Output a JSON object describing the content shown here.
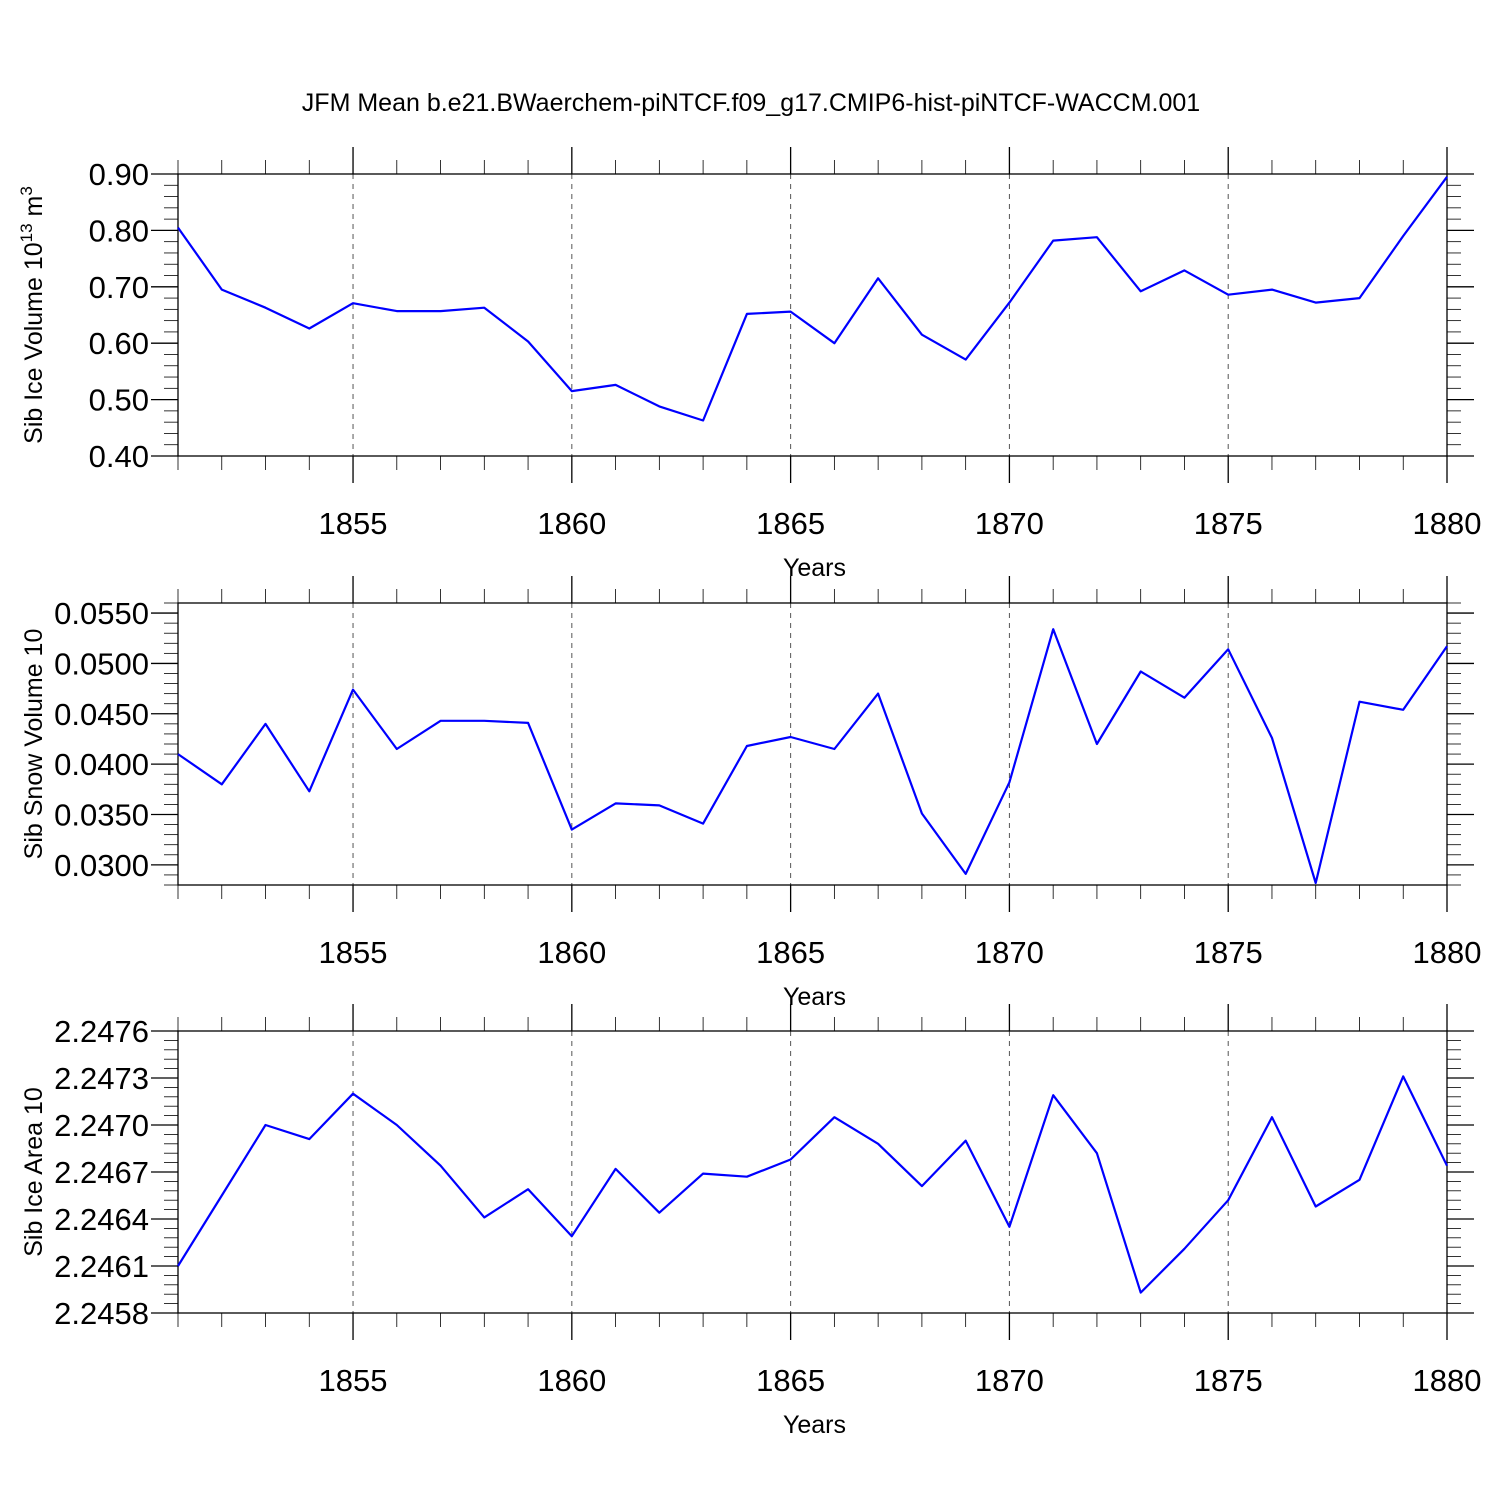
{
  "title": "JFM Mean b.e21.BWaerchem-piNTCF.f09_g17.CMIP6-hist-piNTCF-WACCM.001",
  "colors": {
    "series": "#0000ff",
    "frame": "#000000",
    "grid": "#555555"
  },
  "chart_data": [
    {
      "type": "line",
      "xlabel": "Years",
      "ylabel": "Sib Ice Volume 10",
      "ylabel_exp": "13",
      "ylabel_unit": " m",
      "ylabel_unit_exp": "3",
      "xlim": [
        1851,
        1880
      ],
      "ylim": [
        0.4,
        0.9
      ],
      "xticks": [
        1855,
        1860,
        1865,
        1870,
        1875,
        1880
      ],
      "yticks": [
        0.4,
        0.5,
        0.6,
        0.7,
        0.8,
        0.9
      ],
      "ytick_labels": [
        "0.40",
        "0.50",
        "0.60",
        "0.70",
        "0.80",
        "0.90"
      ],
      "grid": "vertical dashed at major x ticks",
      "x": [
        1851,
        1852,
        1853,
        1854,
        1855,
        1856,
        1857,
        1858,
        1859,
        1860,
        1861,
        1862,
        1863,
        1864,
        1865,
        1866,
        1867,
        1868,
        1869,
        1870,
        1871,
        1872,
        1873,
        1874,
        1875,
        1876,
        1877,
        1878,
        1879,
        1880
      ],
      "series": [
        {
          "values": [
            0.805,
            0.695,
            0.663,
            0.626,
            0.671,
            0.657,
            0.657,
            0.663,
            0.603,
            0.515,
            0.526,
            0.488,
            0.463,
            0.652,
            0.656,
            0.6,
            0.715,
            0.615,
            0.571,
            0.672,
            0.782,
            0.788,
            0.692,
            0.729,
            0.686,
            0.695,
            0.672,
            0.68,
            0.79,
            0.895
          ]
        }
      ]
    },
    {
      "type": "line",
      "xlabel": "Years",
      "ylabel": "Sib Snow Volume 10",
      "xlim": [
        1851,
        1880
      ],
      "ylim": [
        0.028,
        0.056
      ],
      "xticks": [
        1855,
        1860,
        1865,
        1870,
        1875,
        1880
      ],
      "yticks": [
        0.03,
        0.035,
        0.04,
        0.045,
        0.05,
        0.055
      ],
      "ytick_labels": [
        "0.0300",
        "0.0350",
        "0.0400",
        "0.0450",
        "0.0500",
        "0.0550"
      ],
      "grid": "vertical dashed at major x ticks",
      "x": [
        1851,
        1852,
        1853,
        1854,
        1855,
        1856,
        1857,
        1858,
        1859,
        1860,
        1861,
        1862,
        1863,
        1864,
        1865,
        1866,
        1867,
        1868,
        1869,
        1870,
        1871,
        1872,
        1873,
        1874,
        1875,
        1876,
        1877,
        1878,
        1879,
        1880
      ],
      "series": [
        {
          "values": [
            0.041,
            0.038,
            0.044,
            0.0373,
            0.0474,
            0.0415,
            0.0443,
            0.0443,
            0.0441,
            0.0335,
            0.0361,
            0.0359,
            0.0341,
            0.0418,
            0.0427,
            0.0415,
            0.047,
            0.0351,
            0.0291,
            0.0382,
            0.0534,
            0.042,
            0.0492,
            0.0466,
            0.0514,
            0.0426,
            0.0282,
            0.0462,
            0.0454,
            0.0517
          ]
        }
      ]
    },
    {
      "type": "line",
      "xlabel": "Years",
      "ylabel": "Sib Ice Area 10",
      "xlim": [
        1851,
        1880
      ],
      "ylim": [
        2.2458,
        2.2476
      ],
      "xticks": [
        1855,
        1860,
        1865,
        1870,
        1875,
        1880
      ],
      "yticks": [
        2.2458,
        2.2461,
        2.2464,
        2.2467,
        2.247,
        2.2473,
        2.2476
      ],
      "ytick_labels": [
        "2.2458",
        "2.2461",
        "2.2464",
        "2.2467",
        "2.2470",
        "2.2473",
        "2.2476"
      ],
      "grid": "vertical dashed at major x ticks",
      "x": [
        1851,
        1852,
        1853,
        1854,
        1855,
        1856,
        1857,
        1858,
        1859,
        1860,
        1861,
        1862,
        1863,
        1864,
        1865,
        1866,
        1867,
        1868,
        1869,
        1870,
        1871,
        1872,
        1873,
        1874,
        1875,
        1876,
        1877,
        1878,
        1879,
        1880
      ],
      "series": [
        {
          "values": [
            2.2461,
            2.24655,
            2.247,
            2.24691,
            2.2472,
            2.247,
            2.24674,
            2.24641,
            2.24659,
            2.24629,
            2.24672,
            2.24644,
            2.24669,
            2.24667,
            2.24678,
            2.24705,
            2.24688,
            2.24661,
            2.2469,
            2.24635,
            2.24719,
            2.24682,
            2.24593,
            2.24621,
            2.24652,
            2.24705,
            2.24648,
            2.24665,
            2.24731,
            2.24674
          ]
        }
      ]
    }
  ]
}
